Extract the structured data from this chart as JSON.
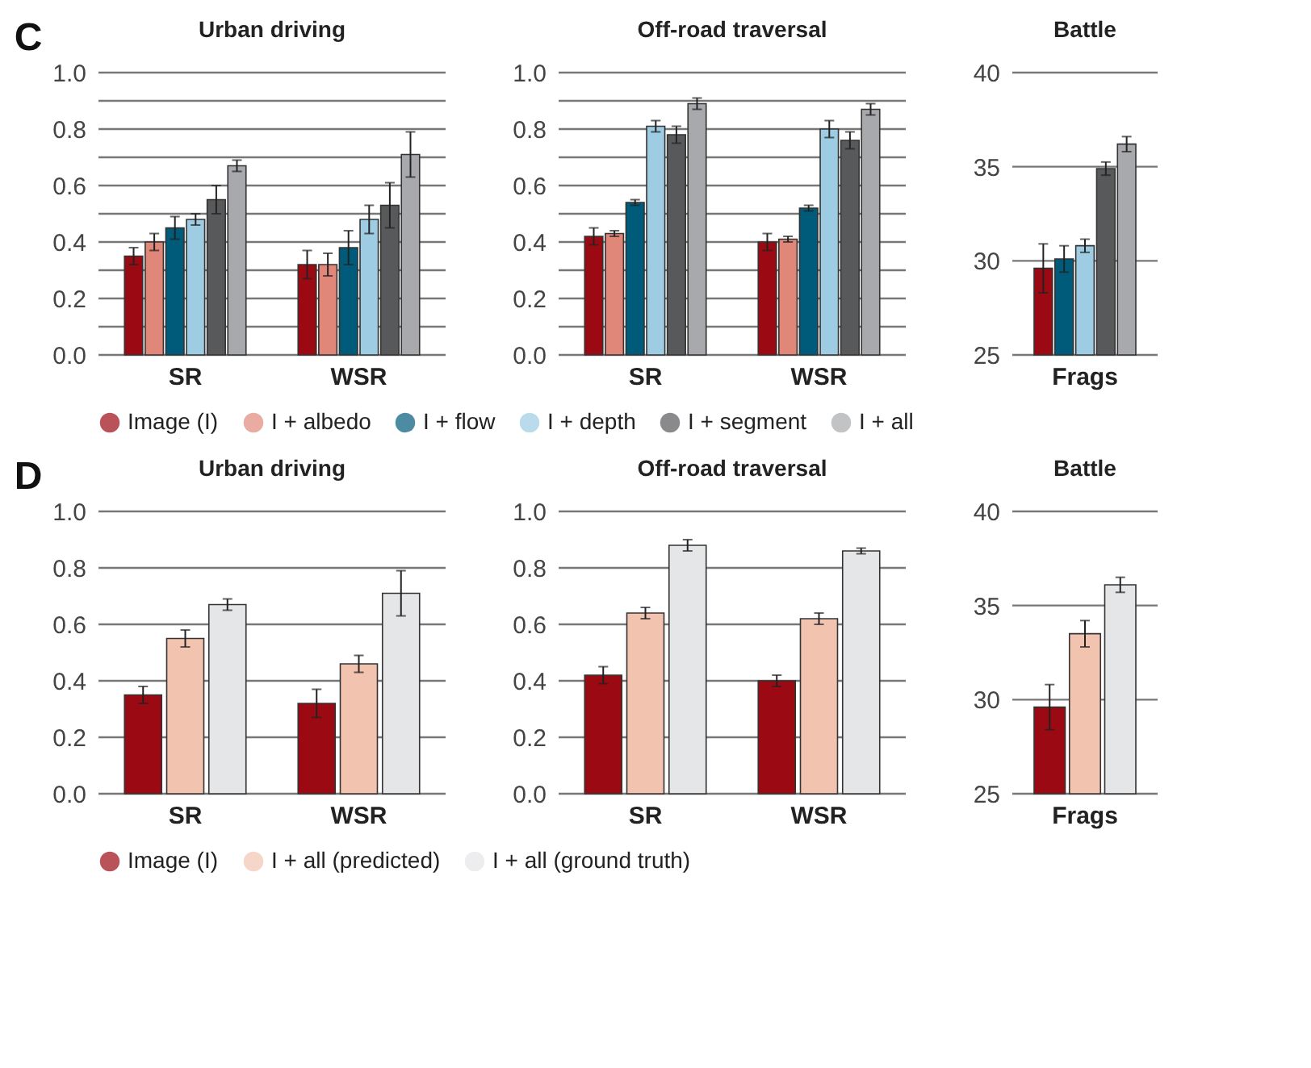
{
  "chart_data": [
    {
      "type": "bar",
      "title": "Urban driving",
      "annotations": [
        "C"
      ],
      "categories": [
        "SR",
        "WSR"
      ],
      "ylim": [
        0,
        1
      ],
      "yticks": [
        {
          "value": 0,
          "label": "0.0"
        },
        {
          "value": 0.1,
          "label": null
        },
        {
          "value": 0.2,
          "label": "0.2"
        },
        {
          "value": 0.3,
          "label": null
        },
        {
          "value": 0.4,
          "label": "0.4"
        },
        {
          "value": 0.5,
          "label": null
        },
        {
          "value": 0.6,
          "label": "0.6"
        },
        {
          "value": 0.7,
          "label": null
        },
        {
          "value": 0.8,
          "label": "0.8"
        },
        {
          "value": 0.9,
          "label": null
        },
        {
          "value": 1,
          "label": "1.0"
        }
      ],
      "grid": "y",
      "legend": "bottom",
      "series": [
        {
          "name": "Image (I)",
          "color": "#9b0a12",
          "values": [
            0.35,
            0.32
          ],
          "errors": [
            0.03,
            0.05
          ]
        },
        {
          "name": "I + albedo",
          "color": "#e0877a",
          "values": [
            0.4,
            0.32
          ],
          "errors": [
            0.03,
            0.04
          ]
        },
        {
          "name": "I + flow",
          "color": "#005a7a",
          "values": [
            0.45,
            0.38
          ],
          "errors": [
            0.04,
            0.06
          ]
        },
        {
          "name": "I + depth",
          "color": "#9dcce3",
          "values": [
            0.48,
            0.48
          ],
          "errors": [
            0.02,
            0.05
          ]
        },
        {
          "name": "I + segment",
          "color": "#58595b",
          "values": [
            0.55,
            0.53
          ],
          "errors": [
            0.05,
            0.08
          ]
        },
        {
          "name": "I + all",
          "color": "#a7a9ac",
          "values": [
            0.67,
            0.71
          ],
          "errors": [
            0.02,
            0.08
          ]
        }
      ]
    },
    {
      "type": "bar",
      "title": "Off-road traversal",
      "categories": [
        "SR",
        "WSR"
      ],
      "ylim": [
        0,
        1
      ],
      "yticks": [
        {
          "value": 0,
          "label": "0.0"
        },
        {
          "value": 0.1,
          "label": null
        },
        {
          "value": 0.2,
          "label": "0.2"
        },
        {
          "value": 0.3,
          "label": null
        },
        {
          "value": 0.4,
          "label": "0.4"
        },
        {
          "value": 0.5,
          "label": null
        },
        {
          "value": 0.6,
          "label": "0.6"
        },
        {
          "value": 0.7,
          "label": null
        },
        {
          "value": 0.8,
          "label": "0.8"
        },
        {
          "value": 0.9,
          "label": null
        },
        {
          "value": 1,
          "label": "1.0"
        }
      ],
      "grid": "y",
      "series": [
        {
          "name": "Image (I)",
          "color": "#9b0a12",
          "values": [
            0.42,
            0.4
          ],
          "errors": [
            0.03,
            0.03
          ]
        },
        {
          "name": "I + albedo",
          "color": "#e0877a",
          "values": [
            0.43,
            0.41
          ],
          "errors": [
            0.01,
            0.01
          ]
        },
        {
          "name": "I + flow",
          "color": "#005a7a",
          "values": [
            0.54,
            0.52
          ],
          "errors": [
            0.01,
            0.01
          ]
        },
        {
          "name": "I + depth",
          "color": "#9dcce3",
          "values": [
            0.81,
            0.8
          ],
          "errors": [
            0.02,
            0.03
          ]
        },
        {
          "name": "I + segment",
          "color": "#58595b",
          "values": [
            0.78,
            0.76
          ],
          "errors": [
            0.03,
            0.03
          ]
        },
        {
          "name": "I + all",
          "color": "#a7a9ac",
          "values": [
            0.89,
            0.87
          ],
          "errors": [
            0.02,
            0.02
          ]
        }
      ]
    },
    {
      "type": "bar",
      "title": "Battle",
      "categories": [
        "Frags"
      ],
      "ylim": [
        25,
        40
      ],
      "yticks": [
        25,
        30,
        35,
        40
      ],
      "grid": "y",
      "series": [
        {
          "name": "Image (I)",
          "color": "#9b0a12",
          "values": [
            29.6
          ],
          "errors": [
            1.3
          ]
        },
        {
          "name": "I + flow",
          "color": "#005a7a",
          "values": [
            30.1
          ],
          "errors": [
            0.7
          ]
        },
        {
          "name": "I + depth",
          "color": "#9dcce3",
          "values": [
            30.8
          ],
          "errors": [
            0.35
          ]
        },
        {
          "name": "I + segment",
          "color": "#58595b",
          "values": [
            34.9
          ],
          "errors": [
            0.35
          ]
        },
        {
          "name": "I + all",
          "color": "#a7a9ac",
          "values": [
            36.2
          ],
          "errors": [
            0.4
          ]
        }
      ]
    },
    {
      "type": "bar",
      "title": "Urban driving",
      "annotations": [
        "D"
      ],
      "categories": [
        "SR",
        "WSR"
      ],
      "ylim": [
        0,
        1
      ],
      "yticks": [
        {
          "value": 0,
          "label": "0.0"
        },
        {
          "value": 0.2,
          "label": "0.2"
        },
        {
          "value": 0.4,
          "label": "0.4"
        },
        {
          "value": 0.6,
          "label": "0.6"
        },
        {
          "value": 0.8,
          "label": "0.8"
        },
        {
          "value": 1,
          "label": "1.0"
        }
      ],
      "grid": "y",
      "legend": "bottom",
      "series": [
        {
          "name": "Image (I)",
          "color": "#9b0a12",
          "values": [
            0.35,
            0.32
          ],
          "errors": [
            0.03,
            0.05
          ]
        },
        {
          "name": "I + all (predicted)",
          "color": "#f2c4b0",
          "values": [
            0.55,
            0.46
          ],
          "errors": [
            0.03,
            0.03
          ]
        },
        {
          "name": "I + all (ground truth)",
          "color": "#e5e6e8",
          "values": [
            0.67,
            0.71
          ],
          "errors": [
            0.02,
            0.08
          ]
        }
      ]
    },
    {
      "type": "bar",
      "title": "Off-road traversal",
      "categories": [
        "SR",
        "WSR"
      ],
      "ylim": [
        0,
        1
      ],
      "yticks": [
        {
          "value": 0,
          "label": "0.0"
        },
        {
          "value": 0.2,
          "label": "0.2"
        },
        {
          "value": 0.4,
          "label": "0.4"
        },
        {
          "value": 0.6,
          "label": "0.6"
        },
        {
          "value": 0.8,
          "label": "0.8"
        },
        {
          "value": 1,
          "label": "1.0"
        }
      ],
      "grid": "y",
      "series": [
        {
          "name": "Image (I)",
          "color": "#9b0a12",
          "values": [
            0.42,
            0.4
          ],
          "errors": [
            0.03,
            0.02
          ]
        },
        {
          "name": "I + all (predicted)",
          "color": "#f2c4b0",
          "values": [
            0.64,
            0.62
          ],
          "errors": [
            0.02,
            0.02
          ]
        },
        {
          "name": "I + all (ground truth)",
          "color": "#e5e6e8",
          "values": [
            0.88,
            0.86
          ],
          "errors": [
            0.02,
            0.01
          ]
        }
      ]
    },
    {
      "type": "bar",
      "title": "Battle",
      "categories": [
        "Frags"
      ],
      "ylim": [
        25,
        40
      ],
      "yticks": [
        25,
        30,
        35,
        40
      ],
      "grid": "y",
      "series": [
        {
          "name": "Image (I)",
          "color": "#9b0a12",
          "values": [
            29.6
          ],
          "errors": [
            1.2
          ]
        },
        {
          "name": "I + all (predicted)",
          "color": "#f2c4b0",
          "values": [
            33.5
          ],
          "errors": [
            0.7
          ]
        },
        {
          "name": "I + all (ground truth)",
          "color": "#e5e6e8",
          "values": [
            36.1
          ],
          "errors": [
            0.4
          ]
        }
      ]
    }
  ]
}
